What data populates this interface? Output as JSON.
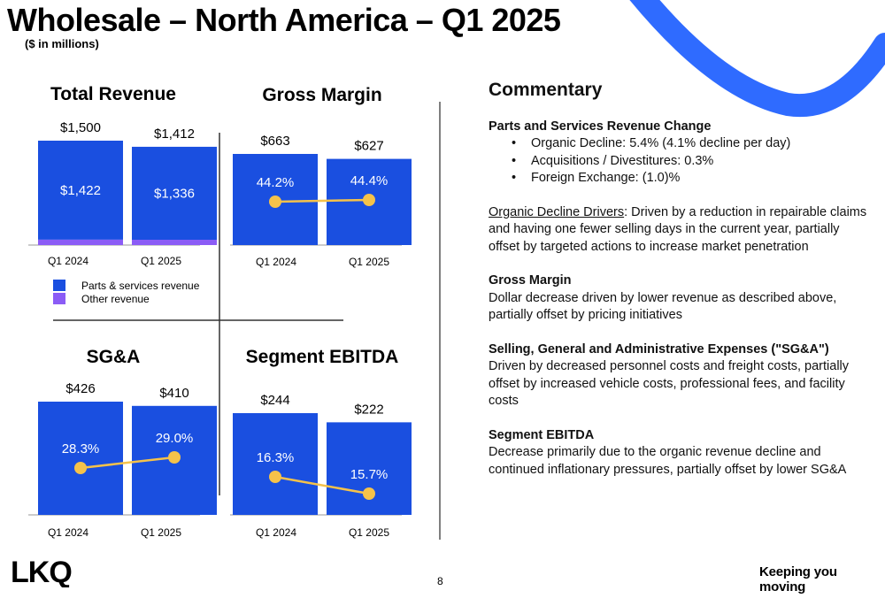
{
  "header": {
    "title": "Wholesale – North America – Q1 2025",
    "subtitle": "($ in millions)"
  },
  "colors": {
    "primary_bar": "#1a4fe0",
    "other_bar": "#8b5cf6",
    "line": "#f5c24a",
    "swoosh": "#2f6bff"
  },
  "chart_data": [
    {
      "type": "bar",
      "title": "Total Revenue",
      "categories": [
        "Q1 2024",
        "Q1 2025"
      ],
      "series": [
        {
          "name": "Parts & services revenue",
          "values": [
            1422,
            1336
          ],
          "labels": [
            "$1,422",
            "$1,336"
          ]
        },
        {
          "name": "Other revenue",
          "values": [
            78,
            76
          ]
        }
      ],
      "totals": [
        1500,
        1412
      ],
      "total_labels": [
        "$1,500",
        "$1,412"
      ],
      "stacked": true,
      "ylim": [
        0,
        1500
      ]
    },
    {
      "type": "bar",
      "title": "Gross Margin",
      "categories": [
        "Q1 2024",
        "Q1 2025"
      ],
      "values": [
        663,
        627
      ],
      "value_labels": [
        "$663",
        "$627"
      ],
      "line_values": [
        44.2,
        44.4
      ],
      "line_labels": [
        "44.2%",
        "44.4%"
      ],
      "ylim": [
        0,
        663
      ]
    },
    {
      "type": "bar",
      "title": "SG&A",
      "categories": [
        "Q1 2024",
        "Q1 2025"
      ],
      "values": [
        426,
        410
      ],
      "value_labels": [
        "$426",
        "$410"
      ],
      "line_values": [
        28.3,
        29.0
      ],
      "line_labels": [
        "28.3%",
        "29.0%"
      ],
      "ylim": [
        0,
        426
      ]
    },
    {
      "type": "bar",
      "title": "Segment EBITDA",
      "categories": [
        "Q1 2024",
        "Q1 2025"
      ],
      "values": [
        244,
        222
      ],
      "value_labels": [
        "$244",
        "$222"
      ],
      "line_values": [
        16.3,
        15.7
      ],
      "line_labels": [
        "16.3%",
        "15.7%"
      ],
      "ylim": [
        0,
        244
      ]
    }
  ],
  "commentary": {
    "title": "Commentary",
    "parts_head": "Parts and Services Revenue Change",
    "bullets": [
      "Organic Decline: 5.4% (4.1% decline per day)",
      "Acquisitions / Divestitures: 0.3%",
      "Foreign Exchange: (1.0)%"
    ],
    "drivers_label": "Organic Decline Drivers",
    "drivers_text": ": Driven by a reduction in repairable claims and having one fewer selling days in the current year, partially offset by targeted actions to increase market penetration",
    "gm_head": "Gross Margin",
    "gm_text": "Dollar decrease driven by lower revenue as described above, partially offset by pricing initiatives",
    "sga_head": "Selling, General and Administrative Expenses  (\"SG&A\")",
    "sga_text": "Driven by decreased personnel costs and freight costs, partially offset by increased vehicle costs, professional fees, and facility costs",
    "ebitda_head": "Segment EBITDA",
    "ebitda_text": "Decrease primarily due to the organic revenue decline and continued inflationary pressures, partially offset by lower SG&A"
  },
  "footer": {
    "logo": "LKQ",
    "page": "8",
    "tagline": "Keeping you moving"
  }
}
